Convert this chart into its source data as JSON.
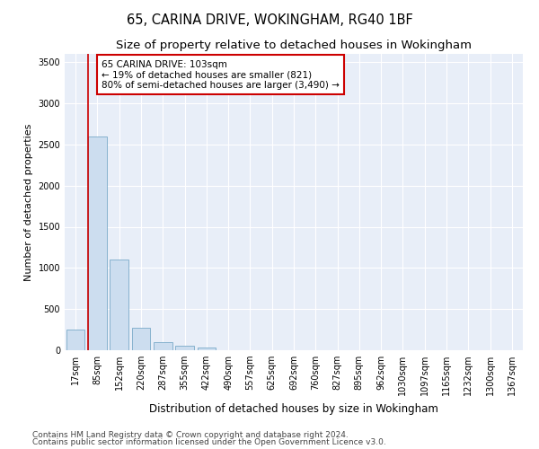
{
  "title": "65, CARINA DRIVE, WOKINGHAM, RG40 1BF",
  "subtitle": "Size of property relative to detached houses in Wokingham",
  "xlabel": "Distribution of detached houses by size in Wokingham",
  "ylabel": "Number of detached properties",
  "categories": [
    "17sqm",
    "85sqm",
    "152sqm",
    "220sqm",
    "287sqm",
    "355sqm",
    "422sqm",
    "490sqm",
    "557sqm",
    "625sqm",
    "692sqm",
    "760sqm",
    "827sqm",
    "895sqm",
    "962sqm",
    "1030sqm",
    "1097sqm",
    "1165sqm",
    "1232sqm",
    "1300sqm",
    "1367sqm"
  ],
  "bar_values": [
    250,
    2600,
    1100,
    270,
    95,
    50,
    30,
    0,
    0,
    0,
    0,
    0,
    0,
    0,
    0,
    0,
    0,
    0,
    0,
    0,
    0
  ],
  "bar_color": "#ccddef",
  "bar_edge_color": "#7aaac8",
  "ylim": [
    0,
    3600
  ],
  "yticks": [
    0,
    500,
    1000,
    1500,
    2000,
    2500,
    3000,
    3500
  ],
  "red_line_x": 0.58,
  "annotation_text": "65 CARINA DRIVE: 103sqm\n← 19% of detached houses are smaller (821)\n80% of semi-detached houses are larger (3,490) →",
  "annotation_box_color": "#ffffff",
  "annotation_box_edge": "#cc0000",
  "red_line_color": "#cc0000",
  "footnote1": "Contains HM Land Registry data © Crown copyright and database right 2024.",
  "footnote2": "Contains public sector information licensed under the Open Government Licence v3.0.",
  "bg_color": "#ffffff",
  "plot_bg_color": "#e8eef8",
  "grid_color": "#ffffff",
  "title_fontsize": 10.5,
  "subtitle_fontsize": 9.5,
  "xlabel_fontsize": 8.5,
  "ylabel_fontsize": 8,
  "tick_fontsize": 7,
  "annotation_fontsize": 7.5,
  "footnote_fontsize": 6.5
}
